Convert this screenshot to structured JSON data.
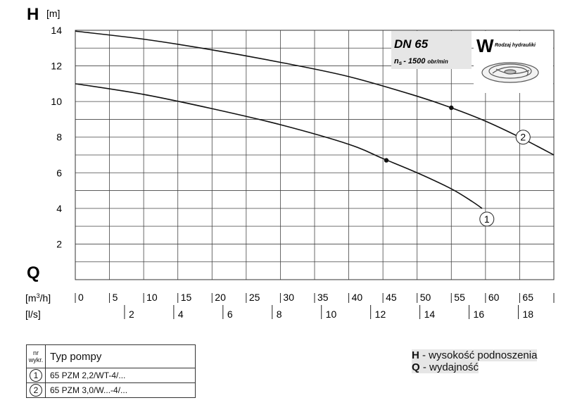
{
  "chart_data": {
    "type": "line",
    "y_axis": {
      "symbol": "H",
      "unit": "[m]",
      "ticks": [
        2,
        4,
        6,
        8,
        10,
        12,
        14
      ],
      "ylim": [
        0,
        14
      ]
    },
    "x_axis": {
      "symbol": "Q",
      "primary_unit": "[m3/h]",
      "primary_ticks": [
        "0",
        "5",
        "10",
        "15",
        "20",
        "25",
        "30",
        "35",
        "40",
        "45",
        "50",
        "55",
        "60",
        "65"
      ],
      "secondary_unit": "[l/s]",
      "secondary_ticks": [
        "2",
        "4",
        "6",
        "8",
        "10",
        "12",
        "14",
        "16",
        "18"
      ],
      "xlim_m3h": [
        0,
        70
      ]
    },
    "grid": true,
    "series": [
      {
        "name": "1",
        "x": [
          0,
          10,
          20,
          30,
          40,
          45,
          50,
          55,
          58,
          59.5
        ],
        "y": [
          11.0,
          10.4,
          9.6,
          8.7,
          7.6,
          6.8,
          6.0,
          5.1,
          4.4,
          4.0
        ],
        "marker_point": [
          45.5,
          6.7
        ]
      },
      {
        "name": "2",
        "x": [
          0,
          10,
          20,
          30,
          40,
          50,
          55,
          60,
          65,
          70
        ],
        "y": [
          13.95,
          13.5,
          12.9,
          12.2,
          11.4,
          10.3,
          9.65,
          8.9,
          8.0,
          7.0
        ],
        "marker_point": [
          55,
          9.65
        ]
      }
    ],
    "annotation": {
      "model": "DN 65",
      "speed_prefix": "n",
      "speed_sub": "s",
      "speed_value": "- 1500",
      "speed_unit": "obr/min",
      "hydraulics_letter": "W",
      "hydraulics_label": "Rodzaj hydrauliki"
    }
  },
  "table": {
    "head_nr_line1": "nr",
    "head_nr_line2": "wykr.",
    "head_type": "Typ pompy",
    "rows": [
      {
        "nr": "1",
        "type": "65 PZM 2,2/WT-4/..."
      },
      {
        "nr": "2",
        "type": "65 PZM 3,0/W...-4/..."
      }
    ]
  },
  "legend": {
    "h_symbol": "H",
    "h_text": "- wysokość podnoszenia",
    "q_symbol": "Q",
    "q_text": "- wydajność"
  }
}
